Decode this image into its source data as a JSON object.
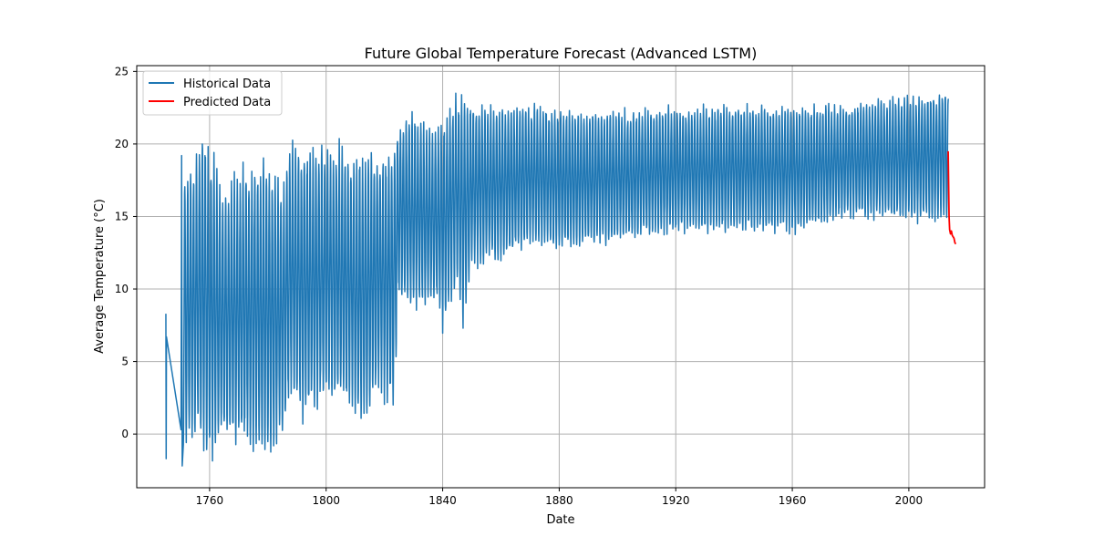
{
  "chart_data": {
    "type": "line",
    "title": "Future Global Temperature Forecast (Advanced LSTM)",
    "xlabel": "Date",
    "ylabel": "Average Temperature (°C)",
    "xlim": [
      1735,
      2026
    ],
    "ylim": [
      -3.7,
      25.4
    ],
    "x_ticks": [
      1760,
      1800,
      1840,
      1880,
      1920,
      1960,
      2000
    ],
    "y_ticks": [
      0,
      5,
      10,
      15,
      20,
      25
    ],
    "grid": true,
    "legend_position": "top-left",
    "series": [
      {
        "name": "Historical Data",
        "color": "#1f77b4",
        "style": "seasonal-oscillation",
        "points": [
          [
            1745.0,
            8.3
          ],
          [
            1745.1,
            -1.7
          ],
          [
            1745.2,
            6.7
          ],
          [
            1750.2,
            0.3
          ],
          [
            1750.4,
            19.2
          ],
          [
            1750.6,
            -2.2
          ]
        ],
        "envelope": [
          {
            "year": 1751,
            "high": 18.5,
            "low": -1.5
          },
          {
            "year": 1755,
            "high": 18.6,
            "low": 0.0
          },
          {
            "year": 1757,
            "high": 21.6,
            "low": -0.6
          },
          {
            "year": 1760,
            "high": 19.9,
            "low": -2.3
          },
          {
            "year": 1765,
            "high": 17.0,
            "low": -0.3
          },
          {
            "year": 1770,
            "high": 18.3,
            "low": -0.8
          },
          {
            "year": 1775,
            "high": 18.6,
            "low": -1.3
          },
          {
            "year": 1780,
            "high": 19.1,
            "low": -2.1
          },
          {
            "year": 1785,
            "high": 17.0,
            "low": 0.0
          },
          {
            "year": 1788,
            "high": 20.2,
            "low": 2.5
          },
          {
            "year": 1792,
            "high": 19.8,
            "low": 0.8
          },
          {
            "year": 1800,
            "high": 19.8,
            "low": 2.5
          },
          {
            "year": 1806,
            "high": 20.0,
            "low": 2.0
          },
          {
            "year": 1810,
            "high": 19.0,
            "low": 1.0
          },
          {
            "year": 1813,
            "high": 19.5,
            "low": 0.3
          },
          {
            "year": 1818,
            "high": 19.5,
            "low": 3.0
          },
          {
            "year": 1823,
            "high": 19.8,
            "low": 1.5
          },
          {
            "year": 1825,
            "high": 21.8,
            "low": 9.0
          },
          {
            "year": 1830,
            "high": 22.0,
            "low": 8.5
          },
          {
            "year": 1838,
            "high": 21.0,
            "low": 9.0
          },
          {
            "year": 1840,
            "high": 22.0,
            "low": 7.2
          },
          {
            "year": 1845,
            "high": 23.4,
            "low": 10.5
          },
          {
            "year": 1847,
            "high": 23.3,
            "low": 7.4
          },
          {
            "year": 1850,
            "high": 22.9,
            "low": 11.5
          },
          {
            "year": 1860,
            "high": 22.5,
            "low": 12.0
          },
          {
            "year": 1870,
            "high": 22.8,
            "low": 13.0
          },
          {
            "year": 1880,
            "high": 22.4,
            "low": 12.8
          },
          {
            "year": 1890,
            "high": 22.3,
            "low": 12.9
          },
          {
            "year": 1900,
            "high": 22.3,
            "low": 13.3
          },
          {
            "year": 1920,
            "high": 22.6,
            "low": 13.8
          },
          {
            "year": 1940,
            "high": 22.8,
            "low": 13.9
          },
          {
            "year": 1960,
            "high": 22.6,
            "low": 13.9
          },
          {
            "year": 1980,
            "high": 22.8,
            "low": 14.8
          },
          {
            "year": 1990,
            "high": 23.2,
            "low": 14.8
          },
          {
            "year": 2000,
            "high": 23.4,
            "low": 14.6
          },
          {
            "year": 2013.6,
            "high": 23.7,
            "low": 14.8
          }
        ]
      },
      {
        "name": "Predicted Data",
        "color": "#ff0000",
        "points": [
          [
            2013.5,
            19.5
          ],
          [
            2013.8,
            15.0
          ],
          [
            2014.0,
            14.1
          ],
          [
            2014.3,
            13.8
          ],
          [
            2014.6,
            14.0
          ],
          [
            2014.9,
            13.7
          ],
          [
            2015.2,
            13.6
          ],
          [
            2015.5,
            13.5
          ],
          [
            2015.8,
            13.2
          ],
          [
            2016.1,
            13.1
          ]
        ]
      }
    ]
  }
}
